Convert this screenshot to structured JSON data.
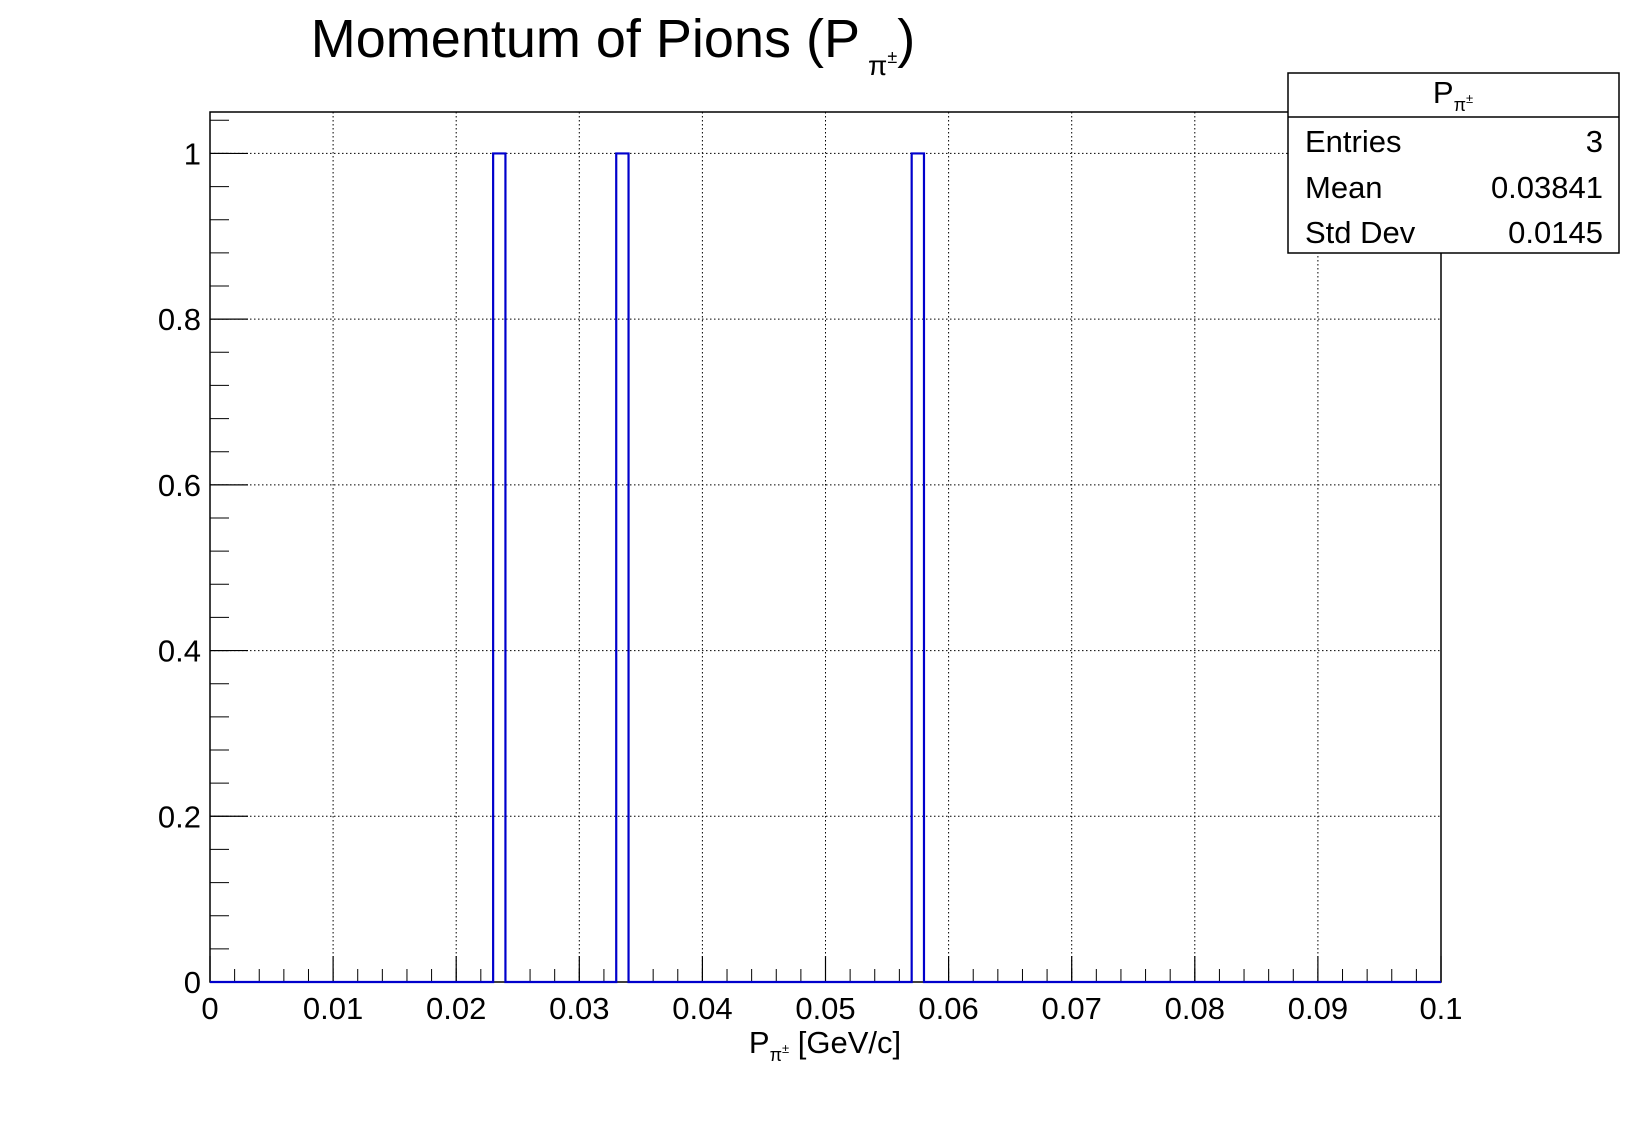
{
  "chart_data": {
    "type": "bar",
    "title": {
      "main": "Momentum of Pions (P",
      "sub": "π",
      "sup": "±",
      "close": ")"
    },
    "xlabel": {
      "main": "P",
      "sub": "π",
      "sup": "±",
      "rest": " [GeV/c]"
    },
    "ylabel": "",
    "xlim": [
      0,
      0.1
    ],
    "ylim": [
      0,
      1.05
    ],
    "x_ticks": [
      "0",
      "0.01",
      "0.02",
      "0.03",
      "0.04",
      "0.05",
      "0.06",
      "0.07",
      "0.08",
      "0.09",
      "0.1"
    ],
    "y_ticks": [
      "0",
      "0.2",
      "0.4",
      "0.6",
      "0.8",
      "1"
    ],
    "grid": true,
    "line_color": "#0000cc",
    "bin_width": 0.001,
    "bins": [
      {
        "x_low": 0.023,
        "x_high": 0.024,
        "count": 1
      },
      {
        "x_low": 0.033,
        "x_high": 0.034,
        "count": 1
      },
      {
        "x_low": 0.057,
        "x_high": 0.058,
        "count": 1
      }
    ],
    "stats_box": {
      "title_main": "P",
      "title_sub": "π",
      "title_sup": "±",
      "rows": [
        {
          "label": "Entries",
          "value": "3"
        },
        {
          "label": "Mean",
          "value": "0.03841"
        },
        {
          "label": "Std Dev",
          "value": "0.0145"
        }
      ]
    }
  }
}
